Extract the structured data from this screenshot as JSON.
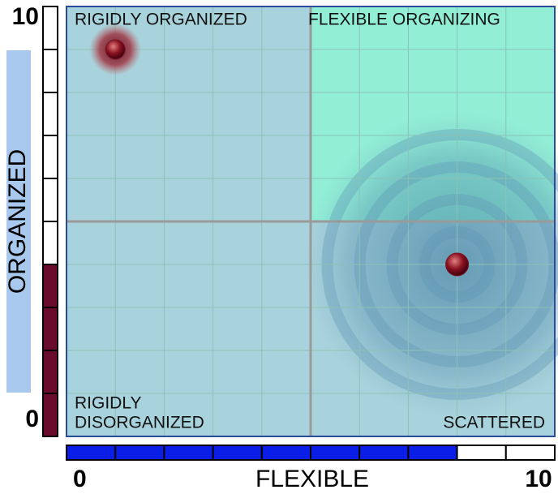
{
  "chart_data": {
    "type": "scatter",
    "x_label": "FLEXIBLE",
    "y_label": "ORGANIZED",
    "xlim": [
      0,
      10
    ],
    "ylim": [
      0,
      10
    ],
    "xticks": [
      0,
      10
    ],
    "yticks": [
      0,
      10
    ],
    "grid": true,
    "minor_ticks": [
      0,
      1,
      2,
      3,
      4,
      5,
      6,
      7,
      8,
      9,
      10
    ],
    "quadrant_labels": {
      "top_left": [
        "RIGIDLY ORGANIZED"
      ],
      "top_right": [
        "FLEXIBLE ORGANIZING"
      ],
      "bottom_left": [
        "RIGIDLY",
        "DISORGANIZED"
      ],
      "bottom_right": [
        "SCATTERED"
      ]
    },
    "x": [
      1,
      8
    ],
    "y": [
      9,
      4
    ],
    "point_color": "#7a1424",
    "x_gauge": 8,
    "x_gauge_color": "#0a1ee8",
    "y_gauge": 4,
    "y_gauge_color": "#6a0a2c",
    "plot_color": "#a9d3dc",
    "highlight_color": "#92efd6"
  }
}
